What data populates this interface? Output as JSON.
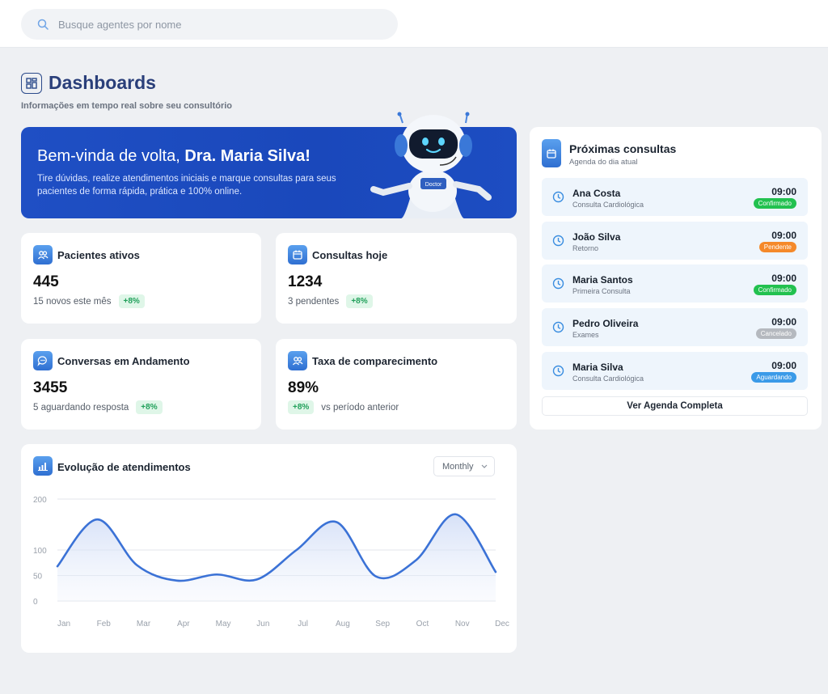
{
  "search": {
    "placeholder": "Busque agentes por nome"
  },
  "header": {
    "title": "Dashboards",
    "subtitle": "Informações em tempo real sobre seu consultório"
  },
  "hero": {
    "greeting": "Bem-vinda de volta, ",
    "name": "Dra. Maria Silva!",
    "text": "Tire dúvidas, realize atendimentos iniciais e marque consultas para seus pacientes de forma rápida, prática e 100% online.",
    "robot_label": "Doctor"
  },
  "stats": [
    {
      "title": "Pacientes ativos",
      "value": "445",
      "note": "15 novos este mês",
      "badge": "+8%",
      "icon": "users-icon"
    },
    {
      "title": "Consultas hoje",
      "value": "1234",
      "note": "3 pendentes",
      "badge": "+8%",
      "icon": "calendar-icon"
    },
    {
      "title": "Conversas em Andamento",
      "value": "3455",
      "note": "5 aguardando resposta",
      "badge": "+8%",
      "icon": "chat-icon"
    },
    {
      "title": "Taxa de comparecimento",
      "value": "89%",
      "note": "vs período anterior",
      "badge": "+8%",
      "icon": "users-icon"
    }
  ],
  "chart": {
    "title": "Evolução de atendimentos",
    "period": "Monthly"
  },
  "chart_data": {
    "type": "area",
    "categories": [
      "Jan",
      "Feb",
      "Mar",
      "Apr",
      "May",
      "Jun",
      "Jul",
      "Aug",
      "Sep",
      "Oct",
      "Nov",
      "Dec"
    ],
    "values": [
      68,
      160,
      70,
      40,
      52,
      42,
      100,
      155,
      48,
      80,
      170,
      57
    ],
    "yticks": [
      0,
      50,
      100,
      200
    ],
    "ylim": [
      0,
      200
    ],
    "color": "#3b72d6",
    "grid": true
  },
  "appointments": {
    "title": "Próximas consultas",
    "subtitle": "Agenda do dia atual",
    "items": [
      {
        "name": "Ana Costa",
        "type": "Consulta Cardiológica",
        "time": "09:00",
        "status": "Confirmado",
        "color": "#22c14f"
      },
      {
        "name": "João Silva",
        "type": "Retorno",
        "time": "09:00",
        "status": "Pendente",
        "color": "#f5892a"
      },
      {
        "name": "Maria Santos",
        "type": "Primeira Consulta",
        "time": "09:00",
        "status": "Confirmado",
        "color": "#22c14f"
      },
      {
        "name": "Pedro Oliveira",
        "type": "Exames",
        "time": "09:00",
        "status": "Cancelado",
        "color": "#b5b9bf"
      },
      {
        "name": "Maria Silva",
        "type": "Consulta Cardiológica",
        "time": "09:00",
        "status": "Aguardando",
        "color": "#3a9ae8"
      }
    ],
    "button": "Ver Agenda Completa"
  }
}
